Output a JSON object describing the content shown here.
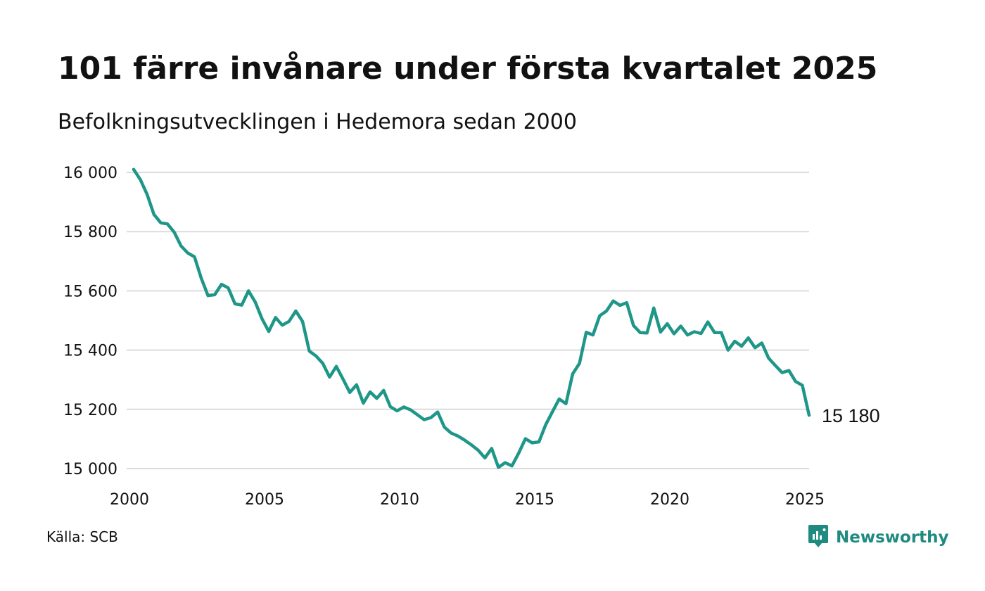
{
  "title": "101 färre invånare under första kvartalet 2025",
  "subtitle": "Befolkningsutvecklingen i Hedemora sedan 2000",
  "source": "Källa: SCB",
  "brand": {
    "name": "Newsworthy",
    "icon": "newsworthy-logo-icon",
    "color": "#1e8a80"
  },
  "chart_data": {
    "type": "line",
    "title": "101 färre invånare under första kvartalet 2025",
    "subtitle": "Befolkningsutvecklingen i Hedemora sedan 2000",
    "xlabel": "",
    "ylabel": "",
    "xlim": [
      2000,
      2025
    ],
    "ylim": [
      15000,
      16000
    ],
    "grid": true,
    "line_color": "#1e9688",
    "y_ticks": [
      15000,
      15200,
      15400,
      15600,
      15800,
      16000
    ],
    "y_tick_labels": [
      "15 000",
      "15 200",
      "15 400",
      "15 600",
      "15 800",
      "16 000"
    ],
    "x_ticks": [
      2000,
      2005,
      2010,
      2015,
      2020,
      2025
    ],
    "x_tick_labels": [
      "2000",
      "2005",
      "2010",
      "2015",
      "2020",
      "2025"
    ],
    "end_label": "15 180",
    "series": [
      {
        "x_start": 2000.0,
        "x_step": 0.25,
        "values": [
          16010,
          15975,
          15925,
          15858,
          15830,
          15826,
          15798,
          15752,
          15728,
          15715,
          15643,
          15584,
          15587,
          15622,
          15610,
          15556,
          15552,
          15600,
          15562,
          15506,
          15463,
          15510,
          15484,
          15497,
          15532,
          15497,
          15397,
          15380,
          15355,
          15309,
          15345,
          15302,
          15257,
          15283,
          15221,
          15259,
          15237,
          15264,
          15209,
          15195,
          15208,
          15198,
          15182,
          15165,
          15172,
          15191,
          15140,
          15120,
          15110,
          15096,
          15080,
          15062,
          15036,
          15068,
          15004,
          15020,
          15009,
          15052,
          15101,
          15087,
          15090,
          15148,
          15192,
          15235,
          15219,
          15320,
          15355,
          15460,
          15451,
          15516,
          15532,
          15566,
          15551,
          15560,
          15483,
          15459,
          15458,
          15542,
          15461,
          15489,
          15455,
          15481,
          15451,
          15462,
          15456,
          15495,
          15459,
          15459,
          15400,
          15430,
          15413,
          15441,
          15408,
          15424,
          15373,
          15348,
          15324,
          15331,
          15294,
          15281,
          15180
        ]
      }
    ]
  }
}
